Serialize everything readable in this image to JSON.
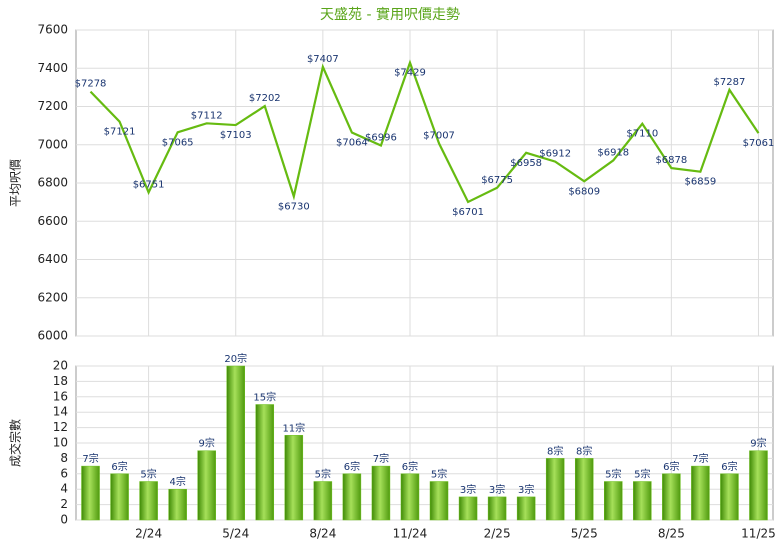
{
  "chart_data": [
    {
      "type": "line",
      "title": "天盛苑 - 實用呎價走勢",
      "y_label": "平均呎價",
      "color": "#66bb11",
      "values": [
        7278,
        7121,
        6751,
        7065,
        7112,
        7103,
        7202,
        6730,
        7407,
        7064,
        6996,
        7429,
        7007,
        6701,
        6775,
        6958,
        6912,
        6809,
        6918,
        7110,
        6878,
        6859,
        7287,
        7061
      ],
      "value_labels": [
        "$7278",
        "$7121",
        "$6751",
        "$7065",
        "$7112",
        "$7103",
        "$7202",
        "$6730",
        "$7407",
        "$7064",
        "$6996",
        "$7429",
        "$7007",
        "$6701",
        "$6775",
        "$6958",
        "$6912",
        "$6809",
        "$6918",
        "$7110",
        "$6878",
        "$6859",
        "$7287",
        "$7061"
      ],
      "ylim": [
        6000,
        7600
      ],
      "yticks": [
        6000,
        6200,
        6400,
        6600,
        6800,
        7000,
        7200,
        7400,
        7600
      ],
      "grid": true
    },
    {
      "type": "bar",
      "y_label": "成交宗數",
      "color": "#6cbf1e",
      "categories": [
        null,
        null,
        "2/24",
        null,
        null,
        "5/24",
        null,
        null,
        "8/24",
        null,
        null,
        "11/24",
        null,
        null,
        "2/25",
        null,
        null,
        "5/25",
        null,
        null,
        "8/25",
        null,
        null,
        "11/25"
      ],
      "values": [
        7,
        6,
        5,
        4,
        9,
        20,
        15,
        11,
        5,
        6,
        7,
        6,
        5,
        3,
        3,
        3,
        8,
        8,
        5,
        5,
        6,
        7,
        6,
        9
      ],
      "value_labels": [
        "7宗",
        "6宗",
        "5宗",
        "4宗",
        "9宗",
        "20宗",
        "15宗",
        "11宗",
        "5宗",
        "6宗",
        "7宗",
        "6宗",
        "5宗",
        "3宗",
        "3宗",
        "3宗",
        "8宗",
        "8宗",
        "5宗",
        "5宗",
        "6宗",
        "7宗",
        "6宗",
        "9宗"
      ],
      "ylim": [
        0,
        20
      ],
      "yticks": [
        0,
        2,
        4,
        6,
        8,
        10,
        12,
        14,
        16,
        18,
        20
      ],
      "grid": true
    }
  ]
}
